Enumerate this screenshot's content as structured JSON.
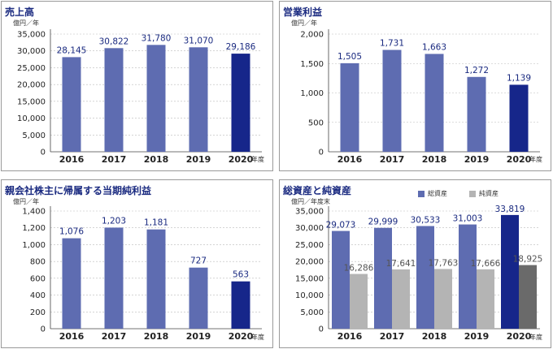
{
  "units": {
    "oku_yen": "億円／年",
    "oku_yen_year_end": "億円／年度末",
    "nendo": "年度"
  },
  "legend": {
    "total_assets": "総資産",
    "net_assets": "純資産"
  },
  "colors": {
    "bar": "#5e6cb1",
    "bar_latest": "#16268a",
    "net_bar": "#b4b4b4",
    "net_latest": "#6a6a6a",
    "title": "#1a2a80",
    "grid": "#bbbbbb"
  },
  "chart_data": [
    {
      "type": "bar",
      "title": "売上高",
      "categories": [
        "2016",
        "2017",
        "2018",
        "2019",
        "2020"
      ],
      "values": [
        28145,
        30822,
        31780,
        31070,
        29186
      ],
      "value_labels": [
        "28,145",
        "30,822",
        "31,780",
        "31,070",
        "29,186"
      ],
      "ylim": [
        0,
        35000
      ],
      "yticks": [
        "0",
        "5,000",
        "10,000",
        "15,000",
        "20,000",
        "25,000",
        "30,000",
        "35,000"
      ],
      "grid": true
    },
    {
      "type": "bar",
      "title": "営業利益",
      "categories": [
        "2016",
        "2017",
        "2018",
        "2019",
        "2020"
      ],
      "values": [
        1505,
        1731,
        1663,
        1272,
        1139
      ],
      "value_labels": [
        "1,505",
        "1,731",
        "1,663",
        "1,272",
        "1,139"
      ],
      "ylim": [
        0,
        2000
      ],
      "yticks": [
        "0",
        "500",
        "1,000",
        "1,500",
        "2,000"
      ],
      "grid": true
    },
    {
      "type": "bar",
      "title": "親会社株主に帰属する当期純利益",
      "categories": [
        "2016",
        "2017",
        "2018",
        "2019",
        "2020"
      ],
      "values": [
        1076,
        1203,
        1181,
        727,
        563
      ],
      "value_labels": [
        "1,076",
        "1,203",
        "1,181",
        "727",
        "563"
      ],
      "ylim": [
        0,
        1400
      ],
      "yticks": [
        "0",
        "200",
        "400",
        "600",
        "800",
        "1,000",
        "1,200",
        "1,400"
      ],
      "grid": true
    },
    {
      "type": "bar",
      "title": "総資産と純資産",
      "categories": [
        "2016",
        "2017",
        "2018",
        "2019",
        "2020"
      ],
      "series": [
        {
          "name": "総資産",
          "values": [
            29073,
            29999,
            30533,
            31003,
            33819
          ],
          "value_labels": [
            "29,073",
            "29,999",
            "30,533",
            "31,003",
            "33,819"
          ]
        },
        {
          "name": "純資産",
          "values": [
            16286,
            17641,
            17763,
            17666,
            18925
          ],
          "value_labels": [
            "16,286",
            "17,641",
            "17,763",
            "17,666",
            "18,925"
          ]
        }
      ],
      "ylim": [
        0,
        35000
      ],
      "yticks": [
        "0",
        "5,000",
        "10,000",
        "15,000",
        "20,000",
        "25,000",
        "30,000",
        "35,000"
      ],
      "grid": true,
      "legend": "top"
    }
  ]
}
